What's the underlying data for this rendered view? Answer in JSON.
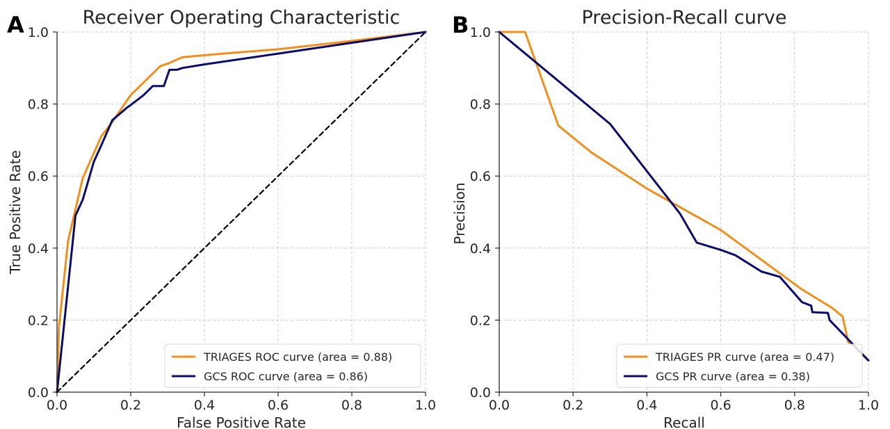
{
  "chart_data": [
    {
      "panel_label": "A",
      "type": "line",
      "title": "Receiver Operating Characteristic",
      "xlabel": "False Positive Rate",
      "ylabel": "True Positive Rate",
      "xlim": [
        0,
        1
      ],
      "ylim": [
        0,
        1
      ],
      "xticks": [
        "0.0",
        "0.2",
        "0.4",
        "0.6",
        "0.8",
        "1.0"
      ],
      "yticks": [
        "0.0",
        "0.2",
        "0.4",
        "0.6",
        "0.8",
        "1.0"
      ],
      "grid": true,
      "legend_position": "bottom-right",
      "series": [
        {
          "name": "TRIAGES ROC curve (area = 0.88)",
          "color": "#f28e1c",
          "x": [
            0,
            0.005,
            0.03,
            0.07,
            0.12,
            0.15,
            0.2,
            0.25,
            0.28,
            0.3,
            0.34,
            0.45,
            0.6,
            0.8,
            1.0
          ],
          "y": [
            0,
            0.18,
            0.42,
            0.595,
            0.71,
            0.75,
            0.825,
            0.875,
            0.905,
            0.912,
            0.93,
            0.94,
            0.952,
            0.975,
            1.0
          ]
        },
        {
          "name": "GCS ROC curve (area = 0.86)",
          "color": "#0a0a6b",
          "x": [
            0,
            0.05,
            0.07,
            0.1,
            0.12,
            0.15,
            0.19,
            0.21,
            0.235,
            0.26,
            0.29,
            0.305,
            0.325,
            0.34,
            0.4,
            0.6,
            0.8,
            1.0
          ],
          "y": [
            0,
            0.49,
            0.535,
            0.64,
            0.685,
            0.755,
            0.79,
            0.805,
            0.825,
            0.85,
            0.85,
            0.895,
            0.895,
            0.9,
            0.91,
            0.94,
            0.97,
            1.0
          ]
        },
        {
          "name": "",
          "color": "#000000",
          "dashed": true,
          "x": [
            0,
            1
          ],
          "y": [
            0,
            1
          ]
        }
      ]
    },
    {
      "panel_label": "B",
      "type": "line",
      "title": "Precision-Recall curve",
      "xlabel": "Recall",
      "ylabel": "Precision",
      "xlim": [
        0,
        1
      ],
      "ylim": [
        0,
        1
      ],
      "xticks": [
        "0.0",
        "0.2",
        "0.4",
        "0.6",
        "0.8",
        "1.0"
      ],
      "yticks": [
        "0.0",
        "0.2",
        "0.4",
        "0.6",
        "0.8",
        "1.0"
      ],
      "grid": true,
      "legend_position": "bottom-right",
      "series": [
        {
          "name": "TRIAGES PR curve (area = 0.47)",
          "color": "#f28e1c",
          "x": [
            0,
            0.07,
            0.16,
            0.25,
            0.4,
            0.6,
            0.76,
            0.82,
            0.9,
            0.93,
            0.945,
            1.0
          ],
          "y": [
            1.0,
            1.0,
            0.74,
            0.665,
            0.565,
            0.45,
            0.33,
            0.285,
            0.235,
            0.21,
            0.14,
            0.088
          ]
        },
        {
          "name": "GCS PR curve (area = 0.38)",
          "color": "#0a0a6b",
          "x": [
            0,
            0.3,
            0.49,
            0.535,
            0.6,
            0.64,
            0.71,
            0.76,
            0.82,
            0.845,
            0.848,
            0.89,
            0.895,
            1.0
          ],
          "y": [
            1.0,
            0.745,
            0.495,
            0.415,
            0.395,
            0.38,
            0.335,
            0.32,
            0.25,
            0.24,
            0.222,
            0.22,
            0.2,
            0.088
          ]
        }
      ]
    }
  ]
}
